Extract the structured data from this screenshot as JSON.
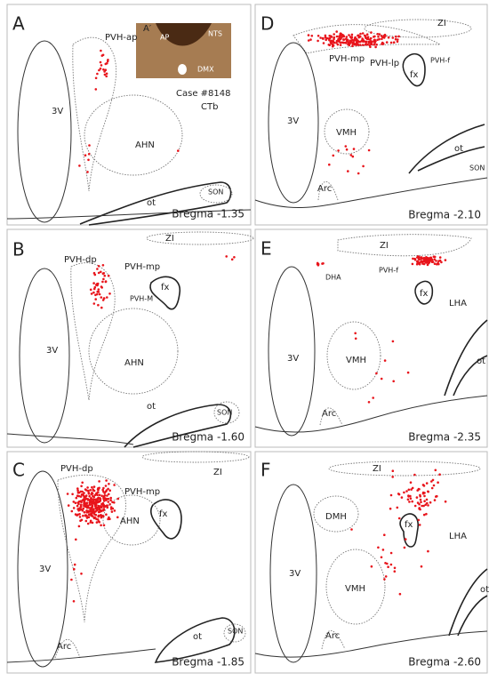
{
  "panels": [
    {
      "letter": "A",
      "labels": [
        "PVH-ap",
        "3V",
        "AHN",
        "ot",
        "SON"
      ],
      "bregma": "Bregma -1.35"
    },
    {
      "letter": "B",
      "labels": [
        "ZI",
        "PVH-dp",
        "PVH-mp",
        "PVH-M",
        "fx",
        "3V",
        "AHN",
        "ot",
        "SON"
      ],
      "bregma": "Bregma -1.60"
    },
    {
      "letter": "C",
      "labels": [
        "ZI",
        "PVH-dp",
        "PVH-mp",
        "fx",
        "AHN",
        "3V",
        "ot",
        "SON",
        "Arc"
      ],
      "bregma": "Bregma -1.85"
    },
    {
      "letter": "D",
      "labels": [
        "ZI",
        "PVH-mp",
        "PVH-lp",
        "PVH-f",
        "fx",
        "3V",
        "VMH",
        "ot",
        "SON",
        "Arc"
      ],
      "bregma": "Bregma -2.10"
    },
    {
      "letter": "E",
      "labels": [
        "ZI",
        "DHA",
        "PVH-f",
        "fx",
        "LHA",
        "3V",
        "VMH",
        "ot",
        "Arc"
      ],
      "bregma": "Bregma -2.35"
    },
    {
      "letter": "F",
      "labels": [
        "ZI",
        "DMH",
        "fx",
        "LHA",
        "3V",
        "VMH",
        "ot",
        "Arc"
      ],
      "bregma": "Bregma -2.60"
    }
  ],
  "inset": {
    "letter": "A′",
    "labels": [
      "AP",
      "NTS",
      "DMX"
    ],
    "case": "Case #8148",
    "tracer": "CTb"
  }
}
